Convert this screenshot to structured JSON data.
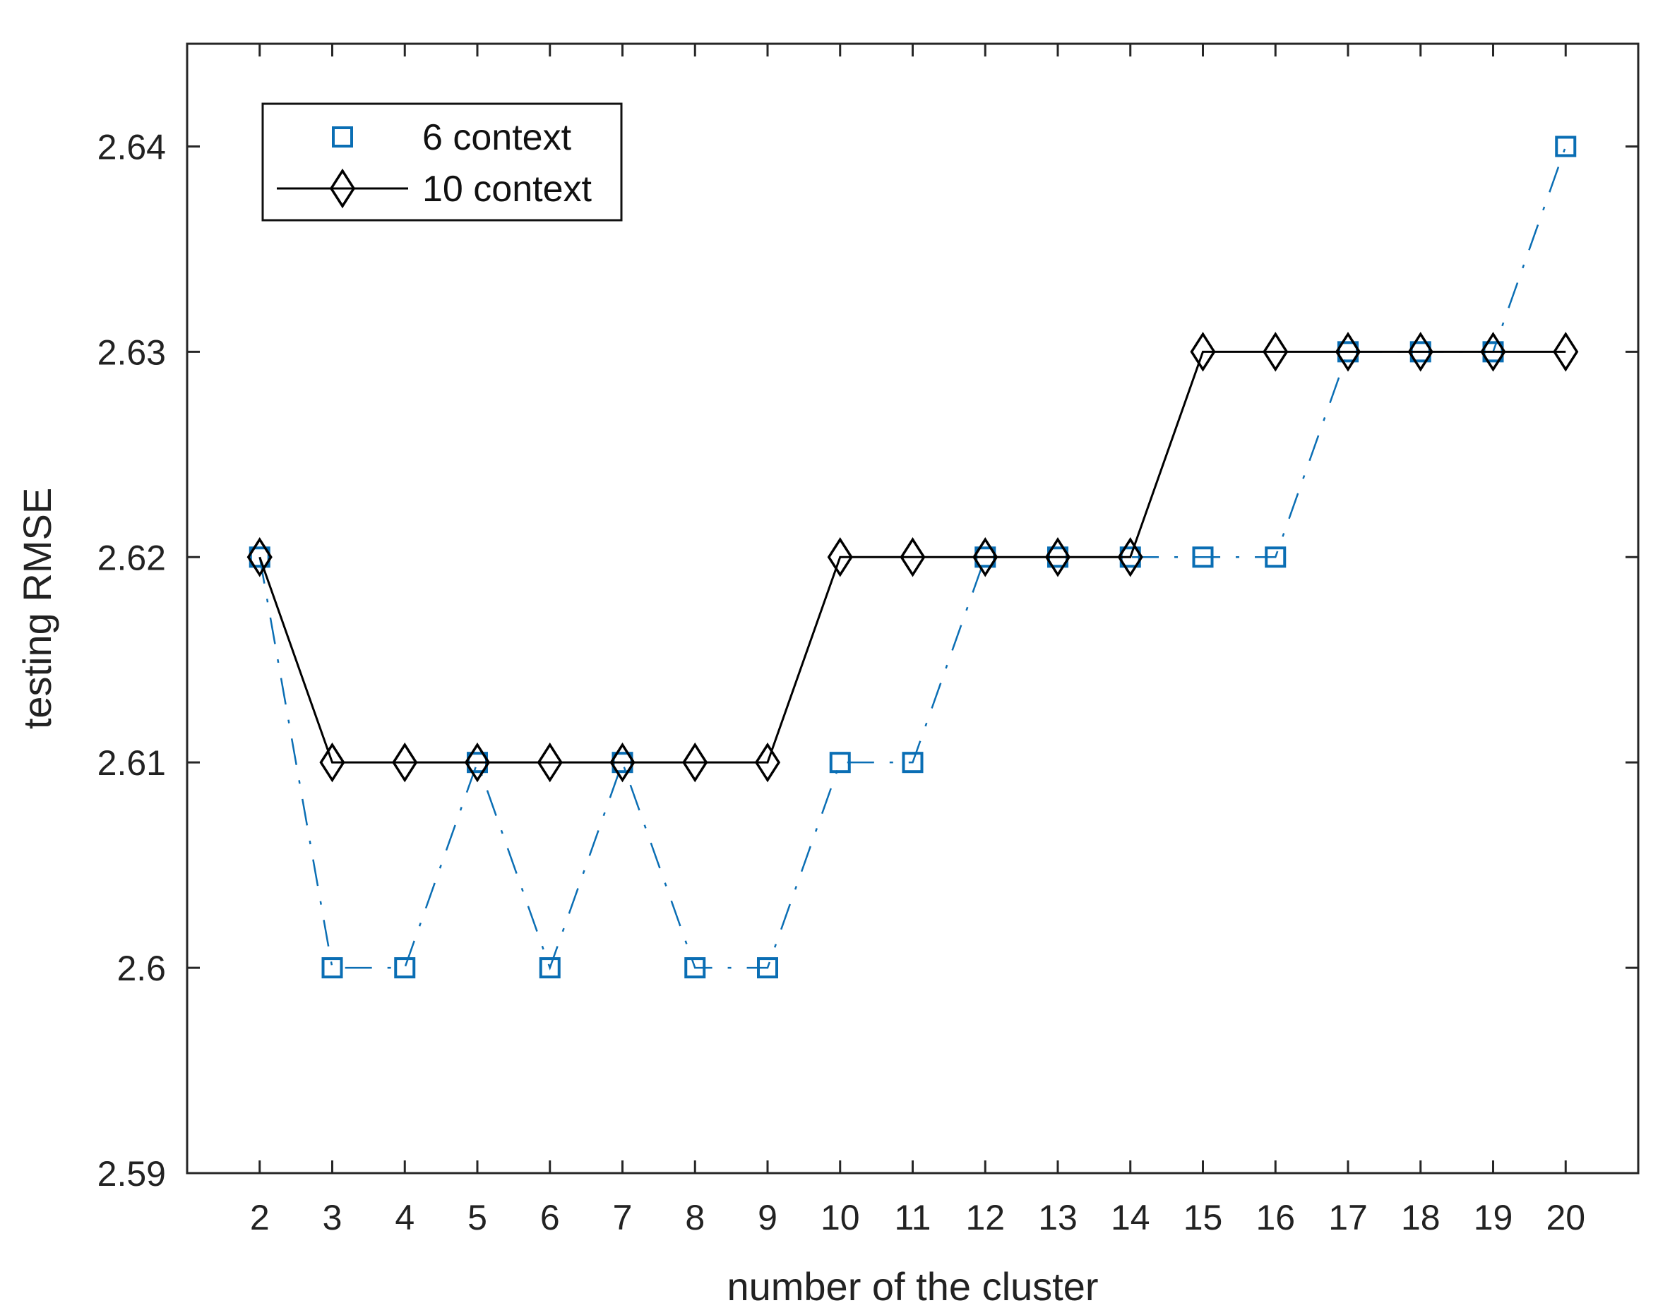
{
  "chart_data": {
    "type": "line",
    "xlabel": "number of the cluster",
    "ylabel": "testing RMSE",
    "x": [
      2,
      3,
      4,
      5,
      6,
      7,
      8,
      9,
      10,
      11,
      12,
      13,
      14,
      15,
      16,
      17,
      18,
      19,
      20
    ],
    "xlim": [
      1,
      21
    ],
    "ylim": [
      2.59,
      2.645
    ],
    "yticks": [
      2.59,
      2.6,
      2.61,
      2.62,
      2.63,
      2.64
    ],
    "ytick_labels": [
      "2.59",
      "2.6",
      "2.61",
      "2.62",
      "2.63",
      "2.64"
    ],
    "xtick_labels": [
      "2",
      "3",
      "4",
      "5",
      "6",
      "7",
      "8",
      "9",
      "10",
      "11",
      "12",
      "13",
      "14",
      "15",
      "16",
      "17",
      "18",
      "19",
      "20"
    ],
    "grid": false,
    "legend_position": "top-left",
    "series": [
      {
        "name": "6 context",
        "color": "#0a6eb4",
        "marker": "square",
        "line_style": "dash-dot",
        "values": [
          2.62,
          2.6,
          2.6,
          2.61,
          2.6,
          2.61,
          2.6,
          2.6,
          2.61,
          2.61,
          2.62,
          2.62,
          2.62,
          2.62,
          2.62,
          2.63,
          2.63,
          2.63,
          2.64
        ]
      },
      {
        "name": "10 context",
        "color": "#000000",
        "marker": "diamond",
        "line_style": "solid",
        "values": [
          2.62,
          2.61,
          2.61,
          2.61,
          2.61,
          2.61,
          2.61,
          2.61,
          2.62,
          2.62,
          2.62,
          2.62,
          2.62,
          2.63,
          2.63,
          2.63,
          2.63,
          2.63,
          2.63
        ]
      }
    ]
  }
}
